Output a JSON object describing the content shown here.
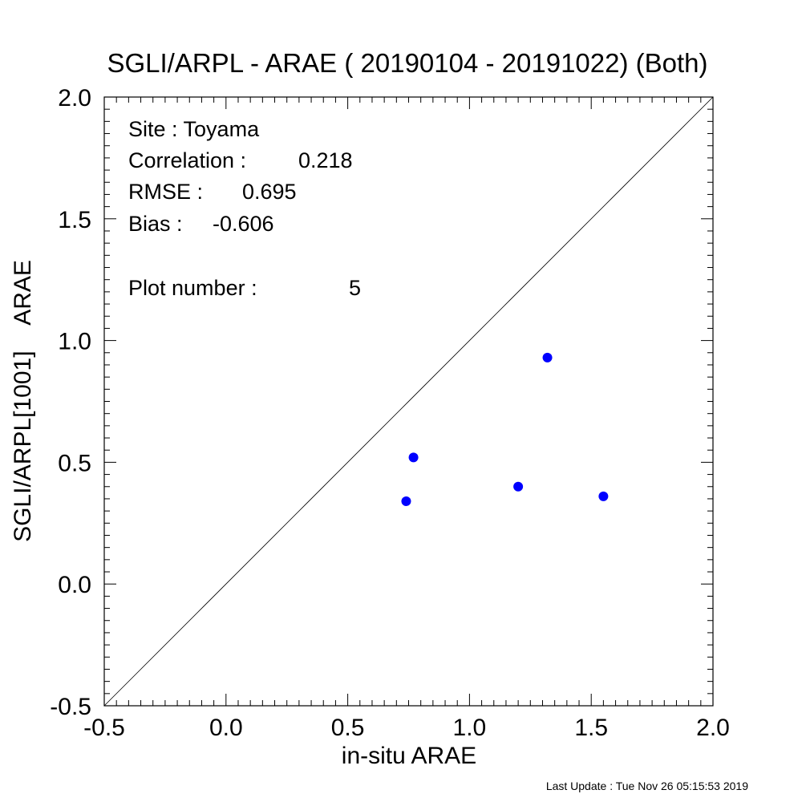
{
  "chart_data": {
    "type": "scatter",
    "title": "SGLI/ARPL - ARAE ( 20190104 - 20191022) (Both)",
    "xlabel": "in-situ ARAE",
    "ylabel": "SGLI/ARPL[1001]    ARAE",
    "xlim": [
      -0.5,
      2.0
    ],
    "ylim": [
      -0.5,
      2.0
    ],
    "x_ticks": [
      "-0.5",
      "0.0",
      "0.5",
      "1.0",
      "1.5",
      "2.0"
    ],
    "y_ticks": [
      "-0.5",
      "0.0",
      "0.5",
      "1.0",
      "1.5",
      "2.0"
    ],
    "grid": false,
    "reference_line": "1:1",
    "point_color": "#0000ff",
    "points": [
      {
        "x": 0.74,
        "y": 0.34
      },
      {
        "x": 0.77,
        "y": 0.52
      },
      {
        "x": 1.2,
        "y": 0.4
      },
      {
        "x": 1.32,
        "y": 0.93
      },
      {
        "x": 1.55,
        "y": 0.36
      }
    ],
    "annotations": {
      "site": "Site : Toyama",
      "correlation_label": "Correlation :",
      "correlation_value": "0.218",
      "rmse_label": "RMSE :",
      "rmse_value": "0.695",
      "bias_label": "Bias :",
      "bias_value": "-0.606",
      "plot_number_label": "Plot number :",
      "plot_number_value": "5"
    }
  },
  "footer": "Last Update : Tue Nov 26 05:15:53 2019"
}
